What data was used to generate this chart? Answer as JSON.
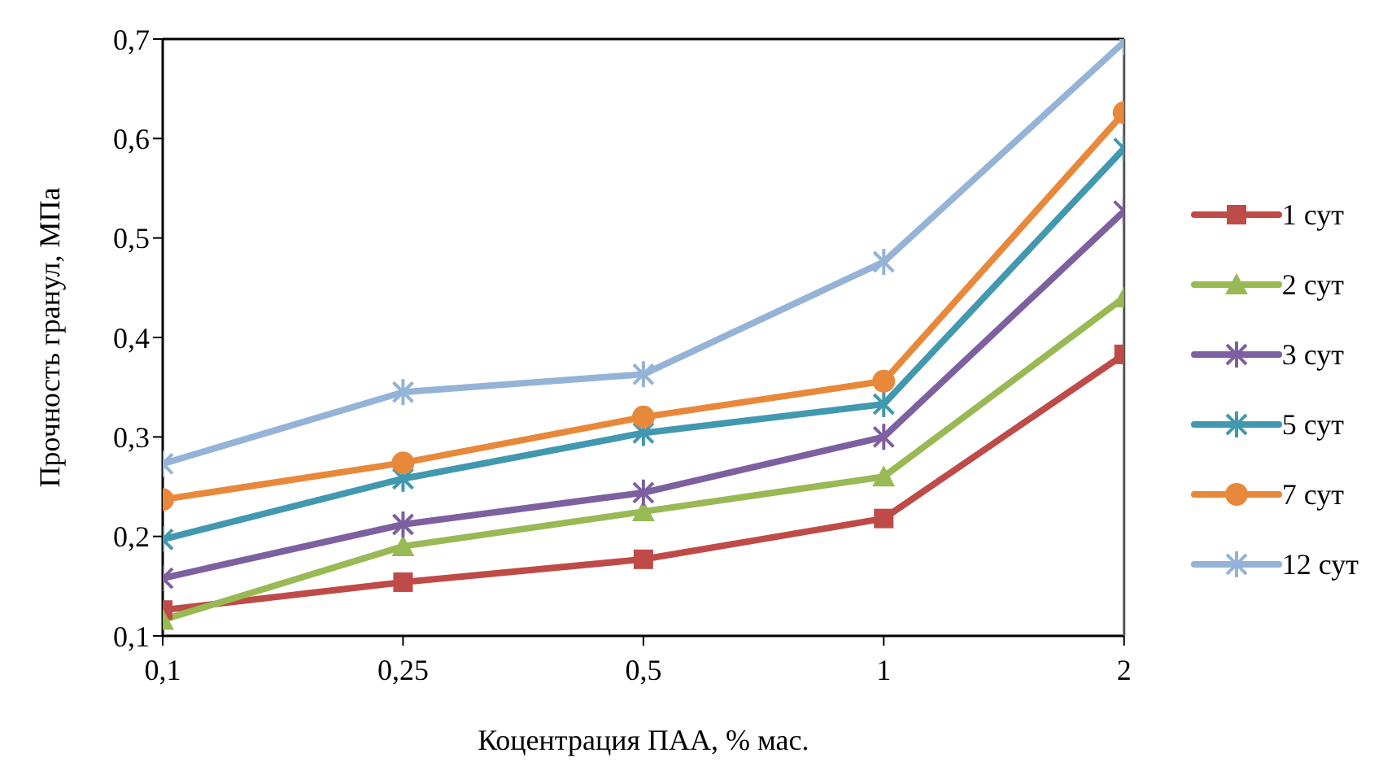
{
  "chart_data": {
    "type": "line",
    "xlabel": "Коцентрация ПАА,  % мас.",
    "ylabel": "Прочность гранул, МПа",
    "categories": [
      "0,1",
      "0,25",
      "0,5",
      "1",
      "2"
    ],
    "ylim": [
      0.1,
      0.7
    ],
    "yticks": [
      {
        "value": 0.1,
        "label": "0,1"
      },
      {
        "value": 0.2,
        "label": "0,2"
      },
      {
        "value": 0.3,
        "label": "0,3"
      },
      {
        "value": 0.4,
        "label": "0,4"
      },
      {
        "value": 0.5,
        "label": "0,5"
      },
      {
        "value": 0.6,
        "label": "0,6"
      },
      {
        "value": 0.7,
        "label": "0,7"
      }
    ],
    "grid": false,
    "legend": "right",
    "line_style": "solid",
    "series": [
      {
        "name": "1 сут",
        "color": "#be4b48",
        "marker": "square",
        "values": [
          0.126,
          0.154,
          0.177,
          0.218,
          0.383
        ]
      },
      {
        "name": "2 сут",
        "color": "#98b954",
        "marker": "triangle",
        "values": [
          0.116,
          0.19,
          0.225,
          0.26,
          0.44
        ]
      },
      {
        "name": "3 сут",
        "color": "#7d60a0",
        "marker": "cross",
        "values": [
          0.158,
          0.212,
          0.244,
          0.3,
          0.527
        ]
      },
      {
        "name": "5 сут",
        "color": "#4198af",
        "marker": "cross",
        "values": [
          0.197,
          0.258,
          0.304,
          0.333,
          0.59
        ]
      },
      {
        "name": "7 сут",
        "color": "#e8883a",
        "marker": "circle",
        "values": [
          0.237,
          0.274,
          0.32,
          0.356,
          0.626
        ]
      },
      {
        "name": "12 сут",
        "color": "#95b3d7",
        "marker": "cross",
        "values": [
          0.273,
          0.345,
          0.363,
          0.476,
          0.697
        ]
      }
    ]
  }
}
